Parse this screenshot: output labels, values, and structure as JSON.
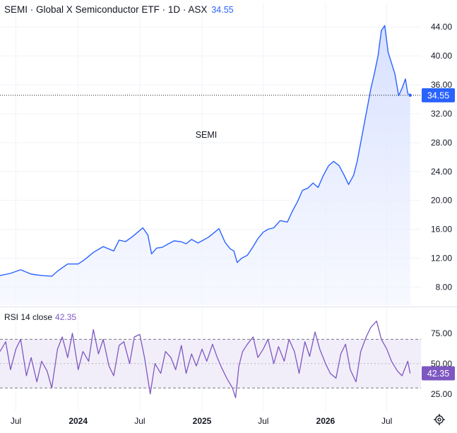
{
  "header": {
    "symbol": "SEMI",
    "name": "Global X Semiconductor ETF",
    "interval": "1D",
    "exchange": "ASX",
    "title": "SEMI · Global X Semiconductor ETF · 1D · ASX",
    "last_value": "34.55"
  },
  "colors": {
    "price_line": "#2962ff",
    "area_top": "#d2dcff",
    "area_bottom": "#f2f5ff",
    "rsi_line": "#7e57c2",
    "rsi_band": "#ede7f6",
    "grid": "#f0f3fa"
  },
  "rsi": {
    "label": "RSI 14 close",
    "value": "42.35",
    "upper": 70,
    "middle": 50,
    "lower": 30
  },
  "settings_icon": "gear-icon",
  "chart_data": [
    {
      "type": "area",
      "title": "SEMI · Global X Semiconductor ETF · 1D · ASX",
      "annotation": "SEMI",
      "x_range": [
        "2023-05-15",
        "2026-10-10"
      ],
      "ylim": [
        5.5,
        44.8
      ],
      "y_ticks": [
        "8.00",
        "12.00",
        "16.00",
        "20.00",
        "24.00",
        "28.00",
        "32.00",
        "36.00",
        "40.00",
        "44.00"
      ],
      "x_ticks": [
        {
          "date": "2023-07-01",
          "label": "Jul"
        },
        {
          "date": "2024-01-01",
          "label": "2024"
        },
        {
          "date": "2024-07-01",
          "label": "Jul"
        },
        {
          "date": "2025-01-01",
          "label": "2025"
        },
        {
          "date": "2025-07-01",
          "label": "Jul"
        },
        {
          "date": "2026-01-01",
          "label": "2026"
        },
        {
          "date": "2026-07-01",
          "label": "Jul"
        }
      ],
      "last_price": 34.55,
      "last_price_label": "34.55",
      "grid": true,
      "series": [
        {
          "x": [
            "2023-05-15",
            "2023-06-15",
            "2023-07-15",
            "2023-08-15",
            "2023-09-15",
            "2023-10-15",
            "2023-11-01",
            "2023-12-01",
            "2024-01-01",
            "2024-01-20",
            "2024-02-15",
            "2024-03-15",
            "2024-04-15",
            "2024-05-01",
            "2024-05-20",
            "2024-06-10",
            "2024-06-25",
            "2024-07-10",
            "2024-07-25",
            "2024-08-05",
            "2024-08-20",
            "2024-09-05",
            "2024-09-20",
            "2024-10-10",
            "2024-10-30",
            "2024-11-15",
            "2024-12-01",
            "2024-12-20",
            "2025-01-05",
            "2025-01-20",
            "2025-02-05",
            "2025-02-20",
            "2025-03-10",
            "2025-03-25",
            "2025-04-05",
            "2025-04-15",
            "2025-04-28",
            "2025-05-15",
            "2025-06-01",
            "2025-06-15",
            "2025-07-01",
            "2025-07-15",
            "2025-08-01",
            "2025-08-20",
            "2025-09-10",
            "2025-09-25",
            "2025-10-10",
            "2025-10-25",
            "2025-11-10",
            "2025-11-25",
            "2025-12-10",
            "2025-12-25",
            "2026-01-10",
            "2026-01-25",
            "2026-02-10",
            "2026-02-25",
            "2026-03-10",
            "2026-03-25",
            "2026-04-05",
            "2026-04-15",
            "2026-04-25",
            "2026-05-05",
            "2026-05-15",
            "2026-05-25",
            "2026-06-05",
            "2026-06-15",
            "2026-06-25",
            "2026-07-05",
            "2026-07-15",
            "2026-07-25",
            "2026-08-05",
            "2026-08-15",
            "2026-08-25",
            "2026-09-01",
            "2026-09-08"
          ],
          "y": [
            9.6,
            9.9,
            10.4,
            9.8,
            9.6,
            9.5,
            10.2,
            11.2,
            11.2,
            11.8,
            12.8,
            13.6,
            13.0,
            14.5,
            14.3,
            15.0,
            15.6,
            16.2,
            15.2,
            12.6,
            13.4,
            13.5,
            13.9,
            14.4,
            14.3,
            14.0,
            14.6,
            14.1,
            14.5,
            14.9,
            15.5,
            16.1,
            14.2,
            13.3,
            13.0,
            11.4,
            12.0,
            12.4,
            13.6,
            14.7,
            15.6,
            16.0,
            16.2,
            17.2,
            17.0,
            18.5,
            19.8,
            21.4,
            21.7,
            22.4,
            21.8,
            23.4,
            24.8,
            25.4,
            24.8,
            23.5,
            22.2,
            23.5,
            25.5,
            28.0,
            30.5,
            33.0,
            35.5,
            37.5,
            40.0,
            43.5,
            44.2,
            40.5,
            39.0,
            37.5,
            34.5,
            35.5,
            36.8,
            34.8,
            34.55
          ]
        }
      ]
    },
    {
      "type": "line",
      "title": "RSI 14 close",
      "ylim": [
        15,
        90
      ],
      "y_ticks": [
        "25.00",
        "50.00",
        "75.00"
      ],
      "last_value_label": "42.35",
      "series": [
        {
          "x": [
            "2023-05-15",
            "2023-06-01",
            "2023-06-15",
            "2023-07-01",
            "2023-07-15",
            "2023-08-01",
            "2023-08-15",
            "2023-09-01",
            "2023-09-15",
            "2023-10-01",
            "2023-10-15",
            "2023-11-01",
            "2023-11-15",
            "2023-12-01",
            "2023-12-15",
            "2024-01-01",
            "2024-01-15",
            "2024-02-01",
            "2024-02-15",
            "2024-03-01",
            "2024-03-15",
            "2024-04-01",
            "2024-04-15",
            "2024-05-01",
            "2024-05-15",
            "2024-06-01",
            "2024-06-15",
            "2024-07-01",
            "2024-07-15",
            "2024-08-01",
            "2024-08-15",
            "2024-09-01",
            "2024-09-15",
            "2024-10-01",
            "2024-10-15",
            "2024-11-01",
            "2024-11-15",
            "2024-12-01",
            "2024-12-15",
            "2025-01-01",
            "2025-01-15",
            "2025-02-01",
            "2025-02-15",
            "2025-03-01",
            "2025-03-15",
            "2025-04-01",
            "2025-04-10",
            "2025-04-20",
            "2025-05-01",
            "2025-05-15",
            "2025-06-01",
            "2025-06-15",
            "2025-07-01",
            "2025-07-15",
            "2025-08-01",
            "2025-08-15",
            "2025-09-01",
            "2025-09-15",
            "2025-10-01",
            "2025-10-15",
            "2025-11-01",
            "2025-11-15",
            "2025-12-01",
            "2025-12-15",
            "2026-01-01",
            "2026-01-15",
            "2026-02-01",
            "2026-02-15",
            "2026-03-01",
            "2026-03-15",
            "2026-04-01",
            "2026-04-15",
            "2026-05-01",
            "2026-05-15",
            "2026-06-01",
            "2026-06-15",
            "2026-07-01",
            "2026-07-15",
            "2026-08-01",
            "2026-08-15",
            "2026-09-01",
            "2026-09-08"
          ],
          "y": [
            60,
            68,
            45,
            62,
            70,
            40,
            55,
            35,
            52,
            44,
            30,
            62,
            72,
            55,
            75,
            45,
            60,
            52,
            78,
            58,
            70,
            48,
            40,
            65,
            68,
            50,
            72,
            74,
            55,
            25,
            50,
            42,
            60,
            55,
            45,
            65,
            42,
            58,
            48,
            62,
            52,
            66,
            55,
            46,
            38,
            30,
            22,
            48,
            60,
            66,
            72,
            55,
            62,
            70,
            50,
            64,
            52,
            70,
            60,
            42,
            68,
            56,
            76,
            62,
            50,
            42,
            38,
            58,
            66,
            45,
            35,
            60,
            72,
            80,
            85,
            70,
            62,
            52,
            44,
            40,
            52,
            42
          ]
        }
      ]
    }
  ]
}
